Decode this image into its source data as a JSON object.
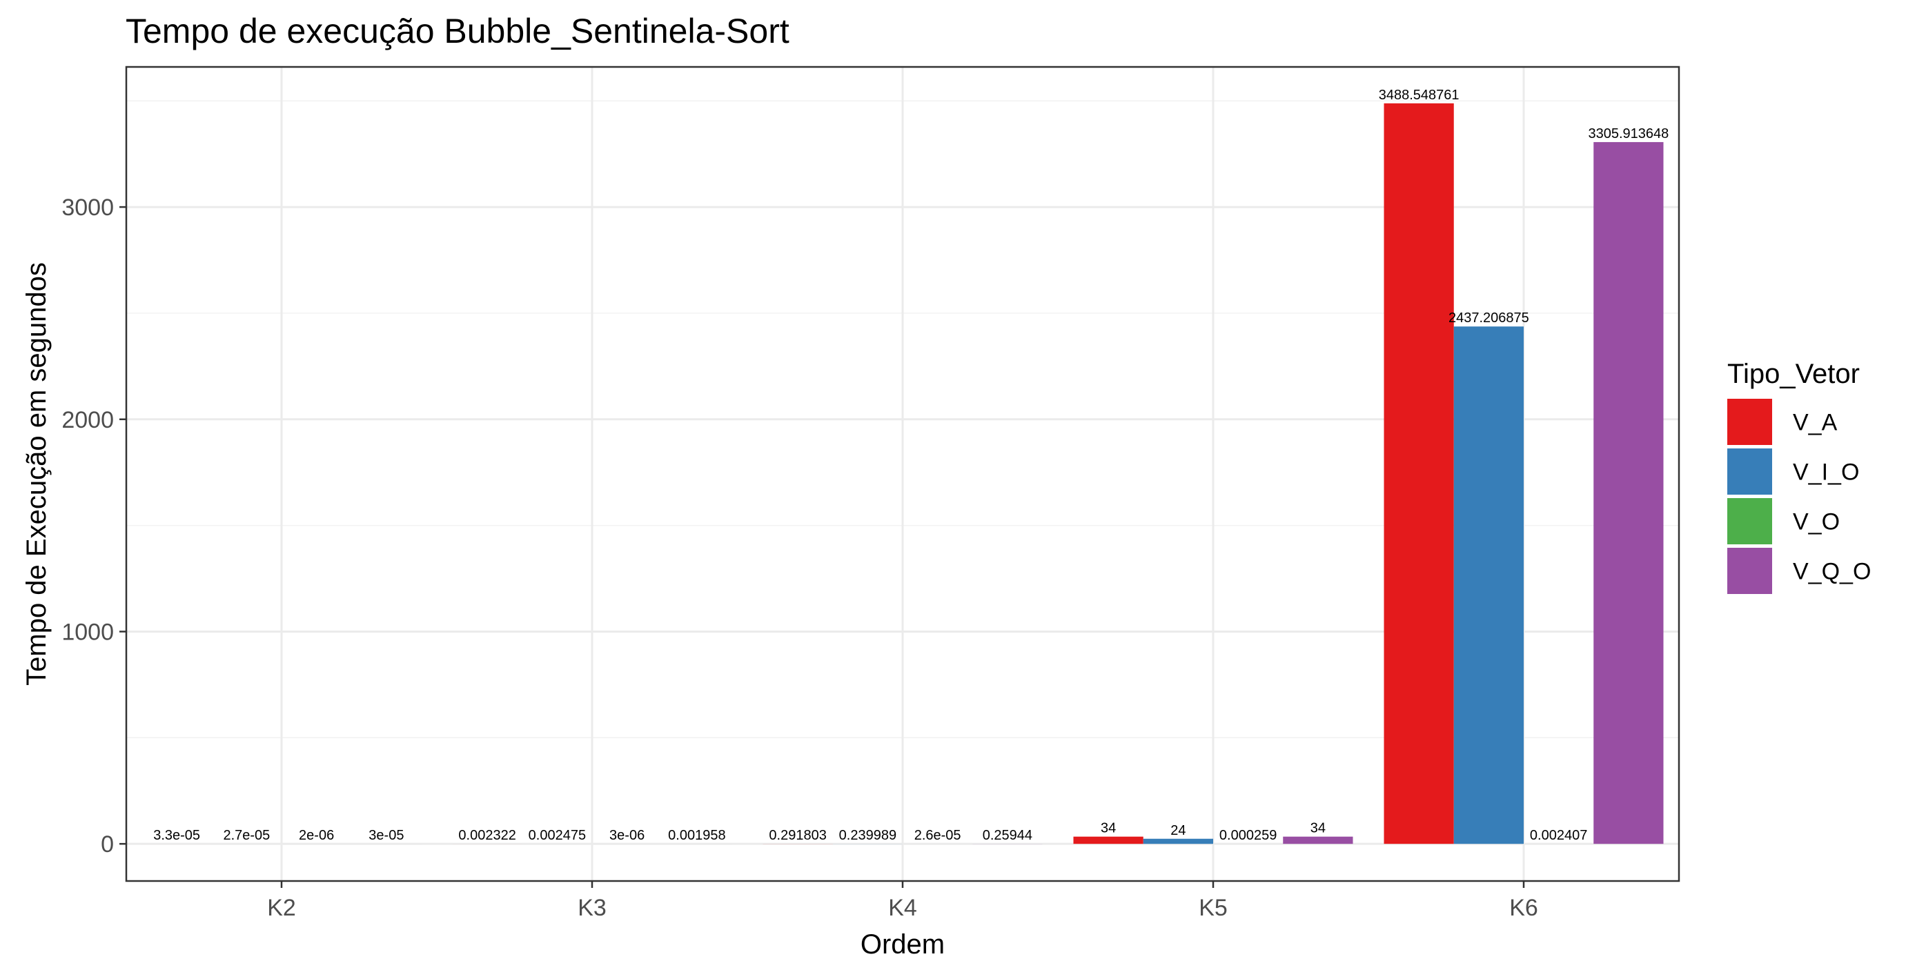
{
  "chart_data": {
    "type": "bar",
    "title": "Tempo de execução Bubble_Sentinela-Sort",
    "xlabel": "Ordem",
    "ylabel": "Tempo de Execução em segundos",
    "categories": [
      "K2",
      "K3",
      "K4",
      "K5",
      "K6"
    ],
    "ylim": [
      -175,
      3660
    ],
    "yticks": [
      0,
      1000,
      2000,
      3000
    ],
    "grid": true,
    "legend_title": "Tipo_Vetor",
    "legend_position": "right",
    "series": [
      {
        "name": "V_A",
        "color": "#e41a1c",
        "values": [
          3.3e-05,
          0.002322,
          0.291803,
          34,
          3488.548761
        ],
        "labels": [
          "3.3e-05",
          "0.002322",
          "0.291803",
          "34",
          "3488.548761"
        ]
      },
      {
        "name": "V_I_O",
        "color": "#377eb8",
        "values": [
          2.7e-05,
          0.002475,
          0.239989,
          24,
          2437.206875
        ],
        "labels": [
          "2.7e-05",
          "0.002475",
          "0.239989",
          "24",
          "2437.206875"
        ]
      },
      {
        "name": "V_O",
        "color": "#4daf4a",
        "values": [
          2e-06,
          3e-06,
          2.6e-05,
          0.000259,
          0.002407
        ],
        "labels": [
          "2e-06",
          "3e-06",
          "2.6e-05",
          "0.000259",
          "0.002407"
        ]
      },
      {
        "name": "V_Q_O",
        "color": "#984ea3",
        "values": [
          3e-05,
          0.001958,
          0.25944,
          34,
          3305.913648
        ],
        "labels": [
          "3e-05",
          "0.001958",
          "0.25944",
          "34",
          "3305.913648"
        ]
      }
    ]
  }
}
